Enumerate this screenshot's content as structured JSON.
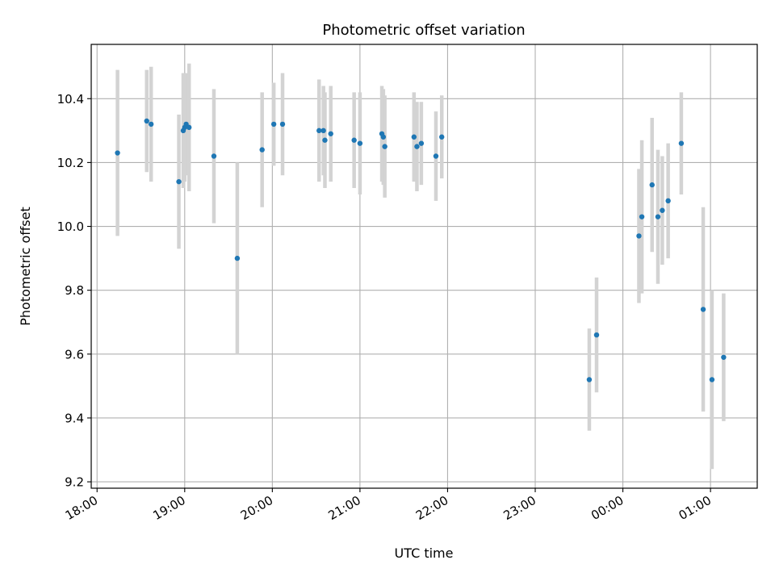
{
  "chart_data": {
    "type": "scatter",
    "title": "Photometric offset variation",
    "xlabel": "UTC time",
    "ylabel": "Photometric offset",
    "grid": true,
    "xlim": [
      "17:56",
      "01:32"
    ],
    "ylim": [
      9.18,
      10.57
    ],
    "x_ticks": [
      "18:00",
      "19:00",
      "20:00",
      "21:00",
      "22:00",
      "23:00",
      "00:00",
      "01:00"
    ],
    "y_ticks": [
      "9.2",
      "9.4",
      "9.6",
      "9.8",
      "10.0",
      "10.2",
      "10.4"
    ],
    "colors": {
      "point": "#1f77b4",
      "errorbar": "#d3d3d3",
      "grid": "#b0b0b0"
    },
    "points": [
      {
        "x": "18:14",
        "y": 10.23,
        "err": 0.26
      },
      {
        "x": "18:34",
        "y": 10.33,
        "err": 0.16
      },
      {
        "x": "18:37",
        "y": 10.32,
        "err": 0.18
      },
      {
        "x": "18:56",
        "y": 10.14,
        "err": 0.21
      },
      {
        "x": "18:59",
        "y": 10.3,
        "err": 0.18
      },
      {
        "x": "19:00",
        "y": 10.31,
        "err": 0.17
      },
      {
        "x": "19:01",
        "y": 10.32,
        "err": 0.16
      },
      {
        "x": "19:03",
        "y": 10.31,
        "err": 0.2
      },
      {
        "x": "19:20",
        "y": 10.22,
        "err": 0.21
      },
      {
        "x": "19:36",
        "y": 9.9,
        "err": 0.3
      },
      {
        "x": "19:53",
        "y": 10.24,
        "err": 0.18
      },
      {
        "x": "20:01",
        "y": 10.32,
        "err": 0.13
      },
      {
        "x": "20:07",
        "y": 10.32,
        "err": 0.16
      },
      {
        "x": "20:32",
        "y": 10.3,
        "err": 0.16
      },
      {
        "x": "20:35",
        "y": 10.3,
        "err": 0.14
      },
      {
        "x": "20:36",
        "y": 10.27,
        "err": 0.15
      },
      {
        "x": "20:40",
        "y": 10.29,
        "err": 0.15
      },
      {
        "x": "20:56",
        "y": 10.27,
        "err": 0.15
      },
      {
        "x": "21:00",
        "y": 10.26,
        "err": 0.16
      },
      {
        "x": "21:15",
        "y": 10.29,
        "err": 0.15
      },
      {
        "x": "21:16",
        "y": 10.28,
        "err": 0.15
      },
      {
        "x": "21:17",
        "y": 10.25,
        "err": 0.16
      },
      {
        "x": "21:37",
        "y": 10.28,
        "err": 0.14
      },
      {
        "x": "21:39",
        "y": 10.25,
        "err": 0.14
      },
      {
        "x": "21:42",
        "y": 10.26,
        "err": 0.13
      },
      {
        "x": "21:52",
        "y": 10.22,
        "err": 0.14
      },
      {
        "x": "21:56",
        "y": 10.28,
        "err": 0.13
      },
      {
        "x": "23:37",
        "y": 9.52,
        "err": 0.16
      },
      {
        "x": "23:42",
        "y": 9.66,
        "err": 0.18
      },
      {
        "x": "00:11",
        "y": 9.97,
        "err": 0.21
      },
      {
        "x": "00:13",
        "y": 10.03,
        "err": 0.24
      },
      {
        "x": "00:20",
        "y": 10.13,
        "err": 0.21
      },
      {
        "x": "00:24",
        "y": 10.03,
        "err": 0.21
      },
      {
        "x": "00:27",
        "y": 10.05,
        "err": 0.17
      },
      {
        "x": "00:31",
        "y": 10.08,
        "err": 0.18
      },
      {
        "x": "00:40",
        "y": 10.26,
        "err": 0.16
      },
      {
        "x": "00:55",
        "y": 9.74,
        "err": 0.32
      },
      {
        "x": "01:01",
        "y": 9.52,
        "err": 0.28
      },
      {
        "x": "01:09",
        "y": 9.59,
        "err": 0.2
      }
    ]
  }
}
